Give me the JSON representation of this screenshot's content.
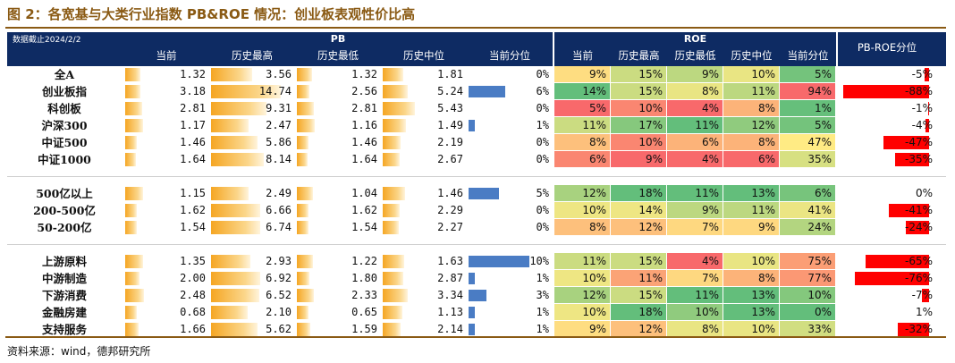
{
  "title": "图 2：各宽基与大类行业指数 PB&ROE 情况：创业板表观性价比高",
  "source": "资料来源：wind，德邦研究所",
  "header": {
    "date_label": "数据截止2024/2/2",
    "pb_group": "PB",
    "roe_group": "ROE",
    "spread_group": "PB-ROE分位",
    "pb_cols": [
      "当前",
      "历史最高",
      "历史最低",
      "历史中位",
      "当前分位"
    ],
    "roe_cols": [
      "当前",
      "历史最高",
      "历史最低",
      "历史中位",
      "当前分位"
    ]
  },
  "colors": {
    "header_bg": "#0e2b63",
    "title_color": "#8a5a14",
    "pb_bar": "#f5a623",
    "pct_bar": "#4a7cc4",
    "spread_bar": "#ff0000"
  },
  "groups": [
    {
      "rows": [
        {
          "name": "全A",
          "pb": [
            "1.32",
            "3.56",
            "1.32",
            "1.81",
            "0%"
          ],
          "pb_pct": 0,
          "roe": [
            "9%",
            "15%",
            "9%",
            "10%",
            "5%"
          ],
          "roe_pct": 5,
          "spread": "-5%",
          "spread_val": -5
        },
        {
          "name": "创业板指",
          "pb": [
            "3.18",
            "14.74",
            "2.56",
            "5.24",
            "6%"
          ],
          "pb_pct": 6,
          "roe": [
            "14%",
            "15%",
            "8%",
            "11%",
            "94%"
          ],
          "roe_pct": 94,
          "spread": "-88%",
          "spread_val": -88
        },
        {
          "name": "科创板",
          "pb": [
            "2.81",
            "9.31",
            "2.81",
            "5.43",
            "0%"
          ],
          "pb_pct": 0,
          "roe": [
            "5%",
            "10%",
            "4%",
            "8%",
            "1%"
          ],
          "roe_pct": 1,
          "spread": "-1%",
          "spread_val": -1
        },
        {
          "name": "沪深300",
          "pb": [
            "1.17",
            "2.47",
            "1.16",
            "1.49",
            "1%"
          ],
          "pb_pct": 1,
          "roe": [
            "11%",
            "17%",
            "11%",
            "12%",
            "5%"
          ],
          "roe_pct": 5,
          "spread": "-4%",
          "spread_val": -4
        },
        {
          "name": "中证500",
          "pb": [
            "1.46",
            "5.86",
            "1.46",
            "2.19",
            "0%"
          ],
          "pb_pct": 0,
          "roe": [
            "8%",
            "10%",
            "6%",
            "8%",
            "47%"
          ],
          "roe_pct": 47,
          "spread": "-47%",
          "spread_val": -47
        },
        {
          "name": "中证1000",
          "pb": [
            "1.64",
            "8.14",
            "1.64",
            "2.67",
            "0%"
          ],
          "pb_pct": 0,
          "roe": [
            "6%",
            "9%",
            "4%",
            "6%",
            "35%"
          ],
          "roe_pct": 35,
          "spread": "-35%",
          "spread_val": -35
        }
      ]
    },
    {
      "rows": [
        {
          "name": "500亿以上",
          "pb": [
            "1.15",
            "2.49",
            "1.04",
            "1.46",
            "5%"
          ],
          "pb_pct": 5,
          "roe": [
            "12%",
            "18%",
            "11%",
            "13%",
            "6%"
          ],
          "roe_pct": 6,
          "spread": "0%",
          "spread_val": 0
        },
        {
          "name": "200-500亿",
          "pb": [
            "1.62",
            "6.66",
            "1.62",
            "2.29",
            "0%"
          ],
          "pb_pct": 0,
          "roe": [
            "10%",
            "14%",
            "9%",
            "11%",
            "41%"
          ],
          "roe_pct": 41,
          "spread": "-41%",
          "spread_val": -41
        },
        {
          "name": "50-200亿",
          "pb": [
            "1.54",
            "6.74",
            "1.54",
            "2.27",
            "0%"
          ],
          "pb_pct": 0,
          "roe": [
            "8%",
            "12%",
            "7%",
            "9%",
            "24%"
          ],
          "roe_pct": 24,
          "spread": "-24%",
          "spread_val": -24
        }
      ]
    },
    {
      "rows": [
        {
          "name": "上游原料",
          "pb": [
            "1.35",
            "2.93",
            "1.22",
            "1.63",
            "10%"
          ],
          "pb_pct": 10,
          "roe": [
            "11%",
            "15%",
            "4%",
            "10%",
            "75%"
          ],
          "roe_pct": 75,
          "spread": "-65%",
          "spread_val": -65
        },
        {
          "name": "中游制造",
          "pb": [
            "2.00",
            "6.92",
            "1.80",
            "2.87",
            "1%"
          ],
          "pb_pct": 1,
          "roe": [
            "10%",
            "11%",
            "7%",
            "8%",
            "77%"
          ],
          "roe_pct": 77,
          "spread": "-76%",
          "spread_val": -76
        },
        {
          "name": "下游消费",
          "pb": [
            "2.48",
            "6.52",
            "2.33",
            "3.34",
            "3%"
          ],
          "pb_pct": 3,
          "roe": [
            "12%",
            "15%",
            "11%",
            "13%",
            "10%"
          ],
          "roe_pct": 10,
          "spread": "-7%",
          "spread_val": -7
        },
        {
          "name": "金融房建",
          "pb": [
            "0.68",
            "2.10",
            "0.65",
            "1.13",
            "1%"
          ],
          "pb_pct": 1,
          "roe": [
            "10%",
            "18%",
            "10%",
            "13%",
            "0%"
          ],
          "roe_pct": 0,
          "spread": "1%",
          "spread_val": 1
        },
        {
          "name": "支持服务",
          "pb": [
            "1.66",
            "5.62",
            "1.59",
            "2.14",
            "1%"
          ],
          "pb_pct": 1,
          "roe": [
            "9%",
            "12%",
            "8%",
            "10%",
            "33%"
          ],
          "roe_pct": 33,
          "spread": "-32%",
          "spread_val": -32
        }
      ]
    }
  ]
}
